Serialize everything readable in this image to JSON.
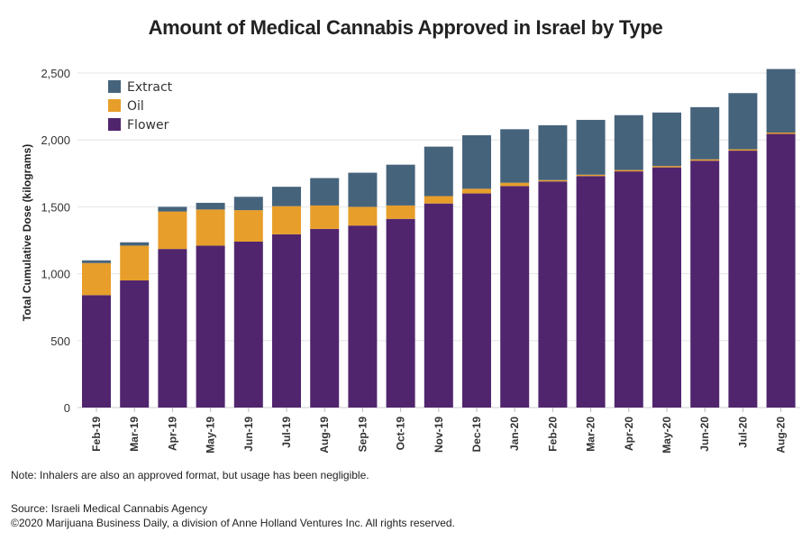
{
  "chart_data": {
    "type": "bar",
    "stacked": true,
    "title": "Amount of Medical Cannabis Approved in Israel by Type",
    "xlabel": "",
    "ylabel": "Total Cumulative Dose (kilograms)",
    "ylim": [
      0,
      2600
    ],
    "yticks": [
      0,
      500,
      1000,
      1500,
      2000,
      2500
    ],
    "ytick_labels": [
      "0",
      "500",
      "1,000",
      "1,500",
      "2,000",
      "2,500"
    ],
    "grid": true,
    "legend_position": "top-left",
    "categories": [
      "Feb-19",
      "Mar-19",
      "Apr-19",
      "May-19",
      "Jun-19",
      "Jul-19",
      "Aug-19",
      "Sep-19",
      "Oct-19",
      "Nov-19",
      "Dec-19",
      "Jan-20",
      "Feb-20",
      "Mar-20",
      "Apr-20",
      "May-20",
      "Jun-20",
      "Jul-20",
      "Aug-20"
    ],
    "series": [
      {
        "name": "Flower",
        "color": "#50256e",
        "values": [
          840,
          950,
          1185,
          1210,
          1240,
          1295,
          1335,
          1360,
          1410,
          1525,
          1600,
          1655,
          1690,
          1730,
          1765,
          1795,
          1845,
          1920,
          2045
        ]
      },
      {
        "name": "Oil",
        "color": "#e89e2a",
        "values": [
          240,
          260,
          280,
          270,
          235,
          210,
          175,
          140,
          100,
          55,
          35,
          25,
          10,
          10,
          10,
          10,
          10,
          10,
          10
        ]
      },
      {
        "name": "Extract",
        "color": "#46637c",
        "values": [
          20,
          25,
          35,
          50,
          100,
          145,
          205,
          255,
          305,
          370,
          400,
          400,
          410,
          410,
          410,
          400,
          390,
          420,
          475
        ]
      }
    ],
    "legend_order": [
      "Extract",
      "Oil",
      "Flower"
    ]
  },
  "footer": {
    "note": "Note: Inhalers are also an approved format, but usage has been negligible.",
    "source": "Source: Israeli Medical Cannabis Agency",
    "copyright": "©2020 Marijuana Business Daily, a division of Anne Holland Ventures Inc. All rights reserved."
  }
}
